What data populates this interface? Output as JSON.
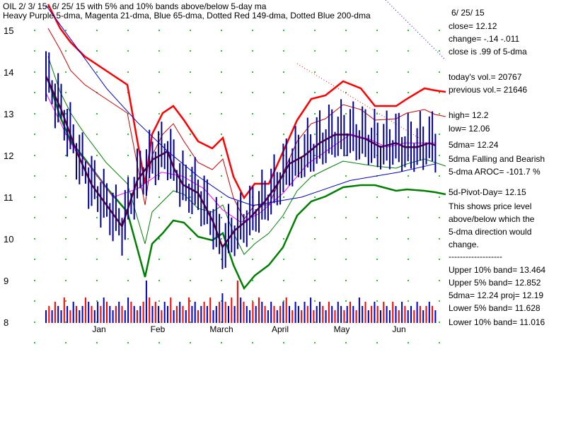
{
  "chart_data": {
    "type": "line",
    "title_line1": "OIL  2/ 3/ 15- 6/ 25/ 15 with  5% and 10% bands above/below 5-day ma",
    "title_line2": "Heavy Purple 5-dma, Magenta 21-dma, Blue 65-dma, Dotted Red 149-dma, Dotted Blue 200-dma",
    "xlabel": "",
    "ylabel": "",
    "ylim": [
      8,
      15
    ],
    "y_ticks": [
      "15",
      "14",
      "13",
      "12",
      "11",
      "10",
      "9",
      "8"
    ],
    "x_ticks": [
      "Jan",
      "Feb",
      "March",
      "April",
      "May",
      "Jun"
    ],
    "grid": "dotted green",
    "info_panel": [
      "6/ 25/ 15",
      "close=  12.12",
      "change= -.14   -.011",
      "close is  .99  of 5-dma",
      "",
      "today's vol.=  20767",
      "previous vol.=  21646",
      "",
      "high=  12.2",
      "low=  12.06",
      "5dma=  12.24",
      "5dma Falling and Bearish",
      "5-dma AROC=  -101.7  %",
      "",
      "5d-Pivot-Day= 12.15",
      "This shows price level",
      "above/below which the",
      "5-dma direction would",
      "change.",
      "-------------------",
      "Upper  10% band=  13.464",
      "Upper  5% band=  12.852",
      "5dma=  12.24   proj= 12.19",
      "Lower  5% band=  11.628",
      "Lower  10% band=  11.016"
    ],
    "colors": {
      "grid": "#22cc22",
      "price": "#000099",
      "ma5": "#800000",
      "ma21": "#ff00ff",
      "ma65": "#0000cc",
      "ma149": "#ff0000",
      "ma200": "#0000ff",
      "band10_upper": "#ff0000",
      "band5": "#cc0000",
      "band5_lower": "#008000",
      "band10_lower": "#008000",
      "vol_up": "#0000cc",
      "vol_down": "#ff0000"
    },
    "series": [
      {
        "name": "5-dma",
        "x": [
          0,
          5,
          10,
          15,
          20,
          25,
          30,
          35,
          40,
          42,
          45,
          50,
          55,
          58,
          62,
          67,
          72,
          76,
          80,
          85,
          90,
          95,
          100,
          105,
          110,
          115,
          118,
          122,
          126,
          128
        ],
        "y": [
          13.9,
          13.1,
          12.1,
          11.3,
          10.8,
          10.3,
          11.4,
          11.9,
          12.1,
          11.7,
          11.3,
          11.1,
          10.4,
          9.8,
          10.2,
          10.5,
          10.9,
          11.3,
          11.8,
          12.0,
          12.3,
          12.5,
          12.5,
          12.4,
          12.2,
          12.3,
          12.2,
          12.2,
          12.3,
          12.24
        ]
      },
      {
        "name": "21-dma",
        "x": [
          0,
          8,
          16,
          22,
          30,
          38,
          45,
          52,
          58,
          64,
          70,
          78,
          86,
          94,
          100,
          106,
          112,
          118,
          124,
          128
        ],
        "y": [
          13.5,
          12.3,
          11.6,
          11.0,
          11.2,
          11.6,
          11.5,
          11.2,
          10.7,
          10.4,
          10.6,
          11.1,
          11.8,
          12.2,
          12.5,
          12.4,
          12.2,
          12.3,
          12.3,
          12.3
        ]
      },
      {
        "name": "65-dma",
        "x": [
          0,
          10,
          20,
          30,
          40,
          50,
          60,
          68,
          76,
          84,
          92,
          100,
          108,
          116,
          122,
          128
        ],
        "y": [
          15.6,
          14.6,
          13.6,
          12.8,
          12.1,
          11.5,
          11.0,
          10.8,
          10.9,
          11.0,
          11.2,
          11.4,
          11.5,
          11.6,
          11.7,
          11.8
        ]
      }
    ],
    "volume": {
      "values": [
        3,
        4,
        3,
        5,
        4,
        3,
        6,
        4,
        3,
        5,
        4,
        3,
        4,
        6,
        5,
        4,
        3,
        5,
        4,
        6,
        5,
        4,
        3,
        4,
        5,
        4,
        3,
        6,
        5,
        4,
        3,
        4,
        5,
        10,
        6,
        4,
        5,
        4,
        3,
        5,
        4,
        6,
        3,
        4,
        5,
        4,
        3,
        6,
        4,
        5,
        3,
        4,
        5,
        4,
        6,
        3,
        4,
        5,
        7,
        5,
        4,
        6,
        4,
        10,
        6,
        5,
        4,
        3,
        5,
        4,
        6,
        5,
        4,
        3,
        5,
        4,
        3,
        4,
        5,
        6,
        4,
        3,
        5,
        4,
        3,
        5,
        4,
        6,
        3,
        4,
        5,
        4,
        3,
        5,
        4,
        3,
        5,
        4,
        3,
        4,
        5,
        4,
        3,
        6,
        4,
        5,
        3,
        4,
        5,
        4,
        3,
        5,
        4,
        3,
        5,
        4,
        3,
        5,
        4,
        3,
        4,
        3,
        5,
        4,
        3,
        4,
        5,
        4,
        3
      ],
      "up": [
        1,
        0,
        1,
        0,
        1,
        1,
        0,
        1,
        0,
        1,
        0,
        1,
        1,
        0,
        1,
        0,
        1,
        1,
        0,
        1,
        0,
        1,
        1,
        0,
        1,
        0,
        1,
        1,
        0,
        1,
        0,
        1,
        0,
        1,
        0,
        1,
        0,
        1,
        0,
        1,
        1,
        0,
        1,
        0,
        1,
        0,
        1,
        0,
        1,
        1,
        0,
        1,
        0,
        1,
        0,
        1,
        1,
        0,
        1,
        0,
        1,
        0,
        1,
        0,
        1,
        0,
        1,
        1,
        0,
        1,
        0,
        1,
        0,
        1,
        1,
        0,
        1,
        0,
        1,
        0,
        1,
        0,
        1,
        1,
        0,
        1,
        0,
        1,
        0,
        1,
        1,
        0,
        1,
        0,
        1,
        0,
        1,
        1,
        0,
        1,
        0,
        1,
        0,
        1,
        1,
        0,
        1,
        0,
        1,
        0,
        1,
        0,
        1,
        1,
        0,
        1,
        0,
        1,
        0,
        1,
        1,
        0,
        1,
        0,
        1,
        0,
        1,
        0,
        1
      ]
    }
  }
}
